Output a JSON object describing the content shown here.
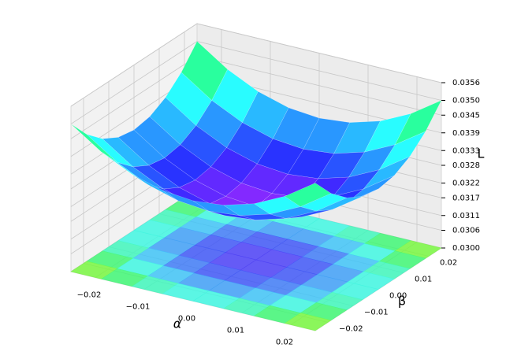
{
  "chart_data": {
    "type": "surface",
    "x_label": "α",
    "y_label": "β",
    "z_label": "L",
    "colormap": "rainbow",
    "grid": true,
    "xlim": [
      -0.025,
      0.025
    ],
    "ylim": [
      -0.025,
      0.025
    ],
    "zlim": [
      0.03,
      0.0356
    ],
    "xticks": [
      {
        "value": -0.02,
        "label": "−0.02"
      },
      {
        "value": -0.01,
        "label": "−0.01"
      },
      {
        "value": 0,
        "label": "0.00"
      },
      {
        "value": 0.01,
        "label": "0.01"
      },
      {
        "value": 0.02,
        "label": "0.02"
      }
    ],
    "yticks": [
      {
        "value": -0.02,
        "label": "−0.02"
      },
      {
        "value": -0.01,
        "label": "−0.01"
      },
      {
        "value": 0,
        "label": "0.00"
      },
      {
        "value": 0.01,
        "label": "0.01"
      },
      {
        "value": 0.02,
        "label": "0.02"
      }
    ],
    "zticks": [
      {
        "value": 0.03,
        "label": "0.0300"
      },
      {
        "value": 0.0306,
        "label": "0.0306"
      },
      {
        "value": 0.0311,
        "label": "0.0311"
      },
      {
        "value": 0.0317,
        "label": "0.0317"
      },
      {
        "value": 0.0322,
        "label": "0.0322"
      },
      {
        "value": 0.0328,
        "label": "0.0328"
      },
      {
        "value": 0.0333,
        "label": "0.0333"
      },
      {
        "value": 0.0339,
        "label": "0.0339"
      },
      {
        "value": 0.0345,
        "label": "0.0345"
      },
      {
        "value": 0.035,
        "label": "0.0350"
      },
      {
        "value": 0.0356,
        "label": "0.0356"
      }
    ],
    "x": [
      -0.025,
      -0.01875,
      -0.0125,
      -0.00625,
      0,
      0.00625,
      0.0125,
      0.01875,
      0.025
    ],
    "y": [
      -0.025,
      -0.01875,
      -0.0125,
      -0.00625,
      0,
      0.00625,
      0.0125,
      0.01875,
      0.025
    ],
    "z": [
      [
        0.035,
        0.0343,
        0.0338,
        0.0335,
        0.0334,
        0.0335,
        0.0338,
        0.0343,
        0.035
      ],
      [
        0.0343,
        0.0336,
        0.0331,
        0.0328,
        0.0327,
        0.0328,
        0.0331,
        0.0336,
        0.0343
      ],
      [
        0.0338,
        0.0331,
        0.0326,
        0.0323,
        0.0322,
        0.0323,
        0.0326,
        0.0331,
        0.0338
      ],
      [
        0.0335,
        0.0328,
        0.0323,
        0.032,
        0.0319,
        0.032,
        0.0323,
        0.0328,
        0.0335
      ],
      [
        0.0334,
        0.0327,
        0.0322,
        0.0319,
        0.0318,
        0.0319,
        0.0322,
        0.0327,
        0.0334
      ],
      [
        0.0335,
        0.0328,
        0.0323,
        0.032,
        0.0319,
        0.032,
        0.0323,
        0.0328,
        0.0335
      ],
      [
        0.0338,
        0.0331,
        0.0326,
        0.0323,
        0.0322,
        0.0323,
        0.0326,
        0.0331,
        0.0338
      ],
      [
        0.0343,
        0.0336,
        0.0331,
        0.0328,
        0.0327,
        0.0328,
        0.0331,
        0.0336,
        0.0343
      ],
      [
        0.035,
        0.0343,
        0.0338,
        0.0335,
        0.0334,
        0.0335,
        0.0338,
        0.0343,
        0.035
      ]
    ]
  }
}
